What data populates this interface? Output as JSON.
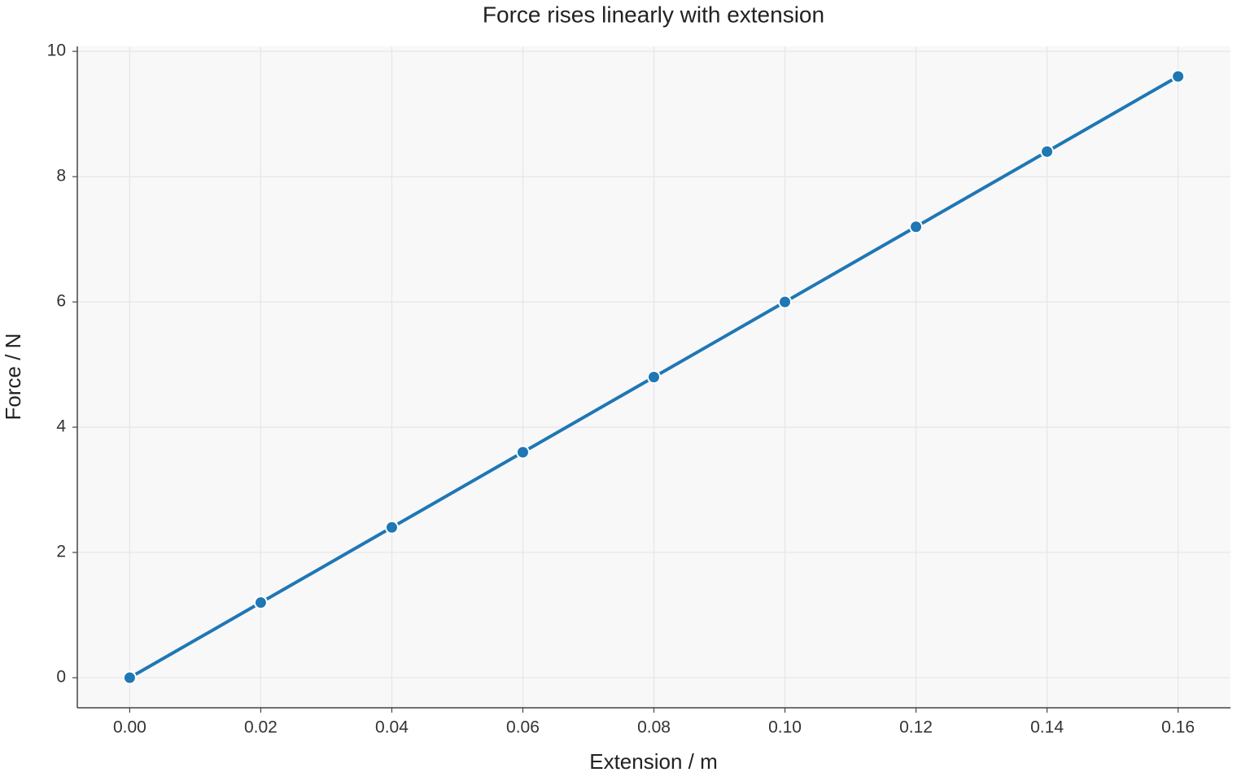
{
  "chart_data": {
    "type": "line",
    "title": "Force rises linearly with extension",
    "xlabel": "Extension / m",
    "ylabel": "Force / N",
    "x": [
      0,
      0.02,
      0.04,
      0.06,
      0.08,
      0.1,
      0.12,
      0.14,
      0.16
    ],
    "series": [
      {
        "color": "#1f77b4",
        "values": [
          0,
          1.2,
          2.4,
          3.6,
          4.8,
          6.0,
          7.2,
          8.4,
          9.6
        ]
      }
    ],
    "xlim": [
      -0.008,
      0.168
    ],
    "ylim": [
      -0.48,
      10.08
    ],
    "xticks": [
      {
        "value": 0,
        "label": "0.00"
      },
      0.02,
      0.04,
      0.06,
      0.08,
      {
        "value": 0.1,
        "label": "0.10"
      },
      0.12,
      0.14,
      0.16
    ],
    "yticks": [
      0,
      2,
      4,
      6,
      8,
      10
    ],
    "grid": true
  }
}
